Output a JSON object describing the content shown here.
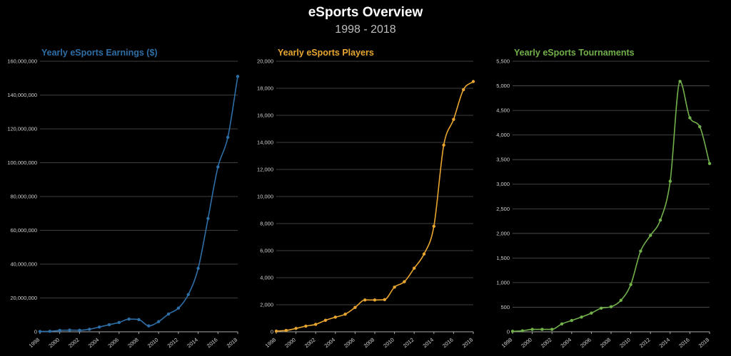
{
  "title": "eSports Overview",
  "subtitle": "1998 - 2018",
  "chart_data": [
    {
      "type": "line",
      "title": "Yearly eSports Earnings ($)",
      "color": "#2e6ea6",
      "x": [
        1998,
        1999,
        2000,
        2001,
        2002,
        2003,
        2004,
        2005,
        2006,
        2007,
        2008,
        2009,
        2010,
        2011,
        2012,
        2013,
        2014,
        2015,
        2016,
        2017,
        2018
      ],
      "values": [
        200000,
        300000,
        800000,
        1000000,
        900000,
        1500000,
        2800000,
        4200000,
        5500000,
        7500000,
        7200000,
        3500000,
        6000000,
        10500000,
        14000000,
        22000000,
        37500000,
        67000000,
        97500000,
        115000000,
        151000000
      ],
      "ylim": [
        0,
        160000000
      ],
      "yticks": [
        0,
        20000000,
        40000000,
        60000000,
        80000000,
        100000000,
        120000000,
        140000000,
        160000000
      ],
      "xticks": [
        1998,
        2000,
        2002,
        2004,
        2006,
        2008,
        2010,
        2012,
        2014,
        2016,
        2018
      ]
    },
    {
      "type": "line",
      "title": "Yearly eSports Players",
      "color": "#e8a630",
      "x": [
        1998,
        1999,
        2000,
        2001,
        2002,
        2003,
        2004,
        2005,
        2006,
        2007,
        2008,
        2009,
        2010,
        2011,
        2012,
        2013,
        2014,
        2015,
        2016,
        2017,
        2018
      ],
      "values": [
        50,
        100,
        250,
        420,
        550,
        850,
        1080,
        1300,
        1800,
        2350,
        2350,
        2380,
        3300,
        3700,
        4700,
        5750,
        7800,
        13800,
        15700,
        17900,
        18500
      ],
      "ylim": [
        0,
        20000
      ],
      "yticks": [
        0,
        2000,
        4000,
        6000,
        8000,
        10000,
        12000,
        14000,
        16000,
        18000,
        20000
      ],
      "xticks": [
        1998,
        2000,
        2002,
        2004,
        2006,
        2008,
        2010,
        2012,
        2014,
        2016,
        2018
      ]
    },
    {
      "type": "line",
      "title": "Yearly eSports Tournaments",
      "color": "#72b04a",
      "x": [
        1998,
        1999,
        2000,
        2001,
        2002,
        2003,
        2004,
        2005,
        2006,
        2007,
        2008,
        2009,
        2010,
        2011,
        2012,
        2013,
        2014,
        2015,
        2016,
        2017,
        2018
      ],
      "values": [
        10,
        20,
        50,
        50,
        50,
        160,
        230,
        300,
        380,
        480,
        510,
        640,
        960,
        1640,
        1960,
        2270,
        3060,
        5090,
        4350,
        4170,
        3420
      ],
      "ylim": [
        0,
        5500
      ],
      "yticks": [
        0,
        500,
        1000,
        1500,
        2000,
        2500,
        3000,
        3500,
        4000,
        4500,
        5000,
        5500
      ],
      "xticks": [
        1998,
        2000,
        2002,
        2004,
        2006,
        2008,
        2010,
        2012,
        2014,
        2016,
        2018
      ]
    }
  ]
}
